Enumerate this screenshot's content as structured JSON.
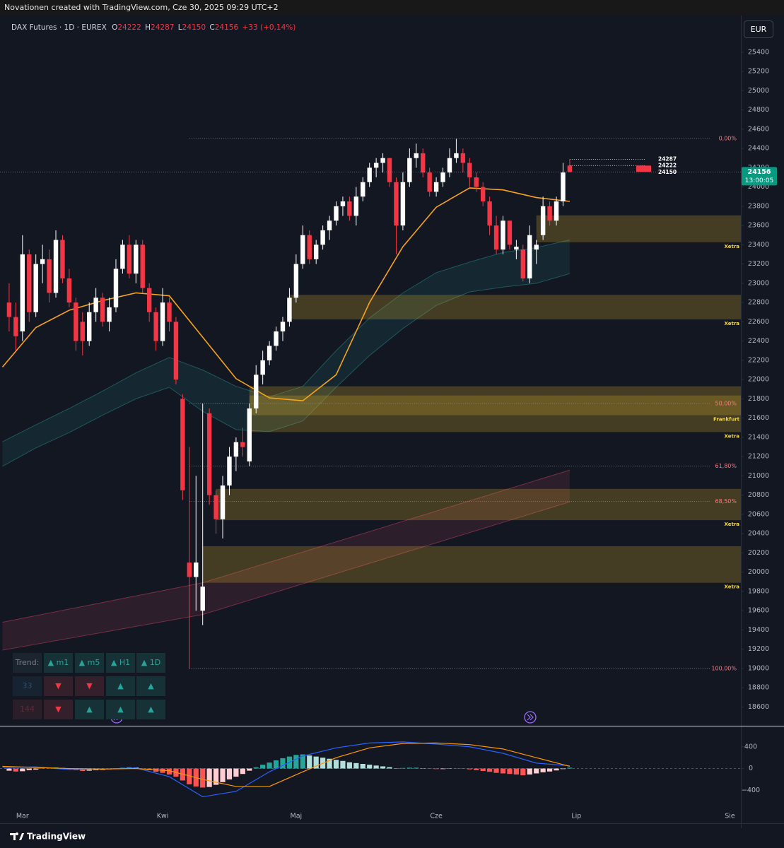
{
  "header": {
    "text": "Novationen created with TradingView.com, Cze 30, 2025 09:29 UTC+2"
  },
  "footer": {
    "logo_text": "TradingView"
  },
  "trend_table": {
    "header": {
      "cells": [
        "Trend:",
        "▲ m1",
        "▲ m5",
        "▲ H1",
        "▲ 1D"
      ],
      "colors": [
        "#787b86",
        "#26a69a",
        "#26a69a",
        "#26a69a",
        "#26a69a"
      ],
      "backgrounds": [
        "#1b2530",
        "#173236",
        "#173236",
        "#173236",
        "#173236"
      ]
    },
    "rows": [
      {
        "cells": [
          "33",
          "▼",
          "▼",
          "▲",
          "▲"
        ],
        "colors": [
          "#2d4f73",
          "#f23645",
          "#f23645",
          "#26a69a",
          "#26a69a"
        ],
        "backgrounds": [
          "#172330",
          "#34202a",
          "#34202a",
          "#173236",
          "#173236"
        ]
      },
      {
        "cells": [
          "144",
          "▼",
          "▲",
          "▲",
          "▲"
        ],
        "colors": [
          "#5c2b36",
          "#f23645",
          "#26a69a",
          "#26a69a",
          "#26a69a"
        ],
        "backgrounds": [
          "#2a1f28",
          "#34202a",
          "#173236",
          "#173236",
          "#173236"
        ]
      }
    ]
  },
  "chart_data": [
    {
      "type": "candlestick",
      "title": "DAX Futures · 1D · EUREX",
      "ohlc_labels": [
        "O",
        "H",
        "L",
        "C"
      ],
      "change": "+33 (+0,14%)",
      "currency": "EUR",
      "countdown": "13:00:05",
      "categories": [
        null,
        null,
        null,
        "Mar",
        null,
        null,
        null,
        null,
        null,
        null,
        null,
        null,
        null,
        null,
        null,
        null,
        null,
        null,
        null,
        null,
        null,
        null,
        null,
        null,
        "Kwi",
        null,
        null,
        null,
        null,
        null,
        null,
        null,
        null,
        null,
        null,
        null,
        null,
        null,
        null,
        null,
        null,
        null,
        null,
        null,
        "Maj",
        null,
        null,
        null,
        null,
        null,
        null,
        null,
        null,
        null,
        null,
        null,
        null,
        null,
        null,
        null,
        null,
        null,
        null,
        null,
        null,
        "Cze",
        null,
        null,
        null,
        null,
        null,
        null,
        null,
        null,
        null,
        null,
        null,
        null,
        null,
        null,
        null,
        null,
        null,
        null,
        null,
        null,
        "Lip",
        null,
        null,
        null,
        null,
        null,
        null,
        null,
        null,
        null,
        null,
        null,
        null,
        null,
        null,
        null,
        null,
        null,
        null,
        null,
        null,
        null,
        null,
        "Sie"
      ],
      "open": [
        null,
        22800,
        22650,
        22500,
        23300,
        22700,
        23200,
        23250,
        22900,
        23450,
        23050,
        22800,
        22600,
        22400,
        22700,
        22850,
        22600,
        22750,
        23150,
        23400,
        23100,
        23400,
        22950,
        22700,
        22400,
        22800,
        22600,
        21800,
        20100,
        19950,
        19600,
        21650,
        20800,
        20550,
        20900,
        21200,
        21350,
        21150,
        21700,
        22050,
        22200,
        22350,
        22500,
        22600,
        22850,
        23200,
        23500,
        23250,
        23400,
        23550,
        23650,
        23800,
        23850,
        23700,
        23900,
        24050,
        24200,
        24250,
        24300,
        24050,
        23600,
        24050,
        24300,
        24350,
        24150,
        23950,
        24050,
        24150,
        24300,
        24350,
        24250,
        24100,
        24000,
        23850,
        23600,
        23350,
        23650,
        23350,
        23350,
        23050,
        23350,
        23500,
        23800,
        23650,
        23850,
        24222,
        null,
        null,
        null,
        null,
        null,
        null,
        null,
        null,
        null,
        null,
        null,
        null,
        null,
        null,
        null,
        null,
        null,
        null,
        null,
        null,
        null,
        null,
        null,
        null
      ],
      "high": [
        null,
        23000,
        22800,
        23500,
        23350,
        23300,
        23400,
        23350,
        23550,
        23500,
        23150,
        22850,
        22700,
        22800,
        22950,
        22900,
        22850,
        23250,
        23450,
        23500,
        23450,
        23450,
        23000,
        22750,
        22950,
        22850,
        22650,
        21850,
        21300,
        21000,
        21750,
        21700,
        20850,
        21000,
        21300,
        21400,
        21500,
        21750,
        22150,
        22300,
        22400,
        22550,
        22650,
        22950,
        23300,
        23600,
        23550,
        23450,
        23600,
        23700,
        23850,
        23900,
        23900,
        24000,
        24100,
        24250,
        24300,
        24350,
        24300,
        24100,
        24150,
        24400,
        24450,
        24400,
        24200,
        24100,
        24200,
        24400,
        24500,
        24400,
        24300,
        24150,
        24050,
        23900,
        23700,
        23700,
        23650,
        23450,
        23400,
        23600,
        23450,
        23900,
        23850,
        23900,
        24250,
        24287,
        null,
        null,
        null,
        null,
        null,
        null,
        null,
        null,
        null,
        null,
        null,
        null,
        null,
        null,
        null,
        null,
        null,
        null,
        null,
        null,
        null,
        null,
        null,
        null
      ],
      "low": [
        null,
        22500,
        22300,
        22400,
        22600,
        22650,
        23000,
        22800,
        22850,
        23000,
        22750,
        22300,
        22250,
        22350,
        22600,
        22550,
        22500,
        22700,
        23100,
        23050,
        23000,
        22900,
        22600,
        22300,
        22350,
        22500,
        21950,
        20750,
        19000,
        19600,
        19450,
        20700,
        20400,
        20350,
        20800,
        21050,
        21200,
        21100,
        21650,
        21950,
        22150,
        22300,
        22400,
        22550,
        22800,
        23150,
        23200,
        23200,
        23350,
        23450,
        23600,
        23700,
        23650,
        23600,
        23850,
        24000,
        24100,
        24150,
        24000,
        23300,
        23550,
        24000,
        24200,
        24100,
        23900,
        23900,
        24000,
        24100,
        24250,
        24150,
        24000,
        23950,
        23800,
        23500,
        23300,
        23300,
        23350,
        23250,
        23020,
        23000,
        23200,
        23450,
        23600,
        23600,
        23800,
        24150,
        null,
        null,
        null,
        null,
        null,
        null,
        null,
        null,
        null,
        null,
        null,
        null,
        null,
        null,
        null,
        null,
        null,
        null,
        null,
        null,
        null,
        null,
        null,
        null
      ],
      "close": [
        null,
        22650,
        22450,
        23300,
        22700,
        23200,
        23250,
        22900,
        23450,
        23050,
        22800,
        22400,
        22400,
        22700,
        22850,
        22600,
        22750,
        23150,
        23400,
        23100,
        23400,
        22950,
        22700,
        22400,
        22800,
        22600,
        22000,
        20850,
        19950,
        20100,
        19850,
        20800,
        20550,
        20900,
        21200,
        21350,
        21300,
        21700,
        22050,
        22200,
        22350,
        22500,
        22600,
        22850,
        23200,
        23500,
        23250,
        23400,
        23550,
        23650,
        23800,
        23850,
        23700,
        23900,
        24050,
        24200,
        24250,
        24300,
        24050,
        23600,
        24050,
        24300,
        24350,
        24150,
        23950,
        24050,
        24150,
        24300,
        24350,
        24250,
        24100,
        24000,
        23850,
        23600,
        23350,
        23650,
        23400,
        23380,
        23050,
        23500,
        23400,
        23800,
        23650,
        23850,
        24150,
        24156,
        null,
        null,
        null,
        null,
        null,
        null,
        null,
        null,
        null,
        null,
        null,
        null,
        null,
        null,
        null,
        null,
        null,
        null,
        null,
        null,
        null,
        null,
        null,
        null
      ],
      "up_color": "#ffffff",
      "down_color": "#f23645",
      "last_tag_color": "#089981",
      "ylim": [
        18420,
        25780
      ],
      "yticks": [
        18600,
        18800,
        19000,
        19200,
        19400,
        19600,
        19800,
        20000,
        20200,
        20400,
        20600,
        20800,
        21000,
        21200,
        21400,
        21600,
        21800,
        22000,
        22200,
        22400,
        22600,
        22800,
        23000,
        23200,
        23400,
        23600,
        23800,
        24000,
        24200,
        24400,
        24600,
        24800,
        25000,
        25200,
        25400
      ],
      "ma": {
        "color": "#f7a21b",
        "x": [
          0,
          5,
          10,
          15,
          20,
          25,
          30,
          35,
          40,
          45,
          50,
          55,
          60,
          65,
          70,
          75,
          80,
          85
        ],
        "values": [
          22130,
          22540,
          22720,
          22820,
          22900,
          22870,
          22440,
          22010,
          21810,
          21780,
          22050,
          22800,
          23380,
          23790,
          23990,
          23970,
          23890,
          23850
        ]
      },
      "bands": [
        {
          "color": "#e04a6a",
          "x": [
            0,
            30,
            85
          ],
          "upper": [
            19480,
            19890,
            21060
          ],
          "lower": [
            19190,
            19560,
            20730
          ]
        },
        {
          "color": "#2a9d9a",
          "x": [
            0,
            5,
            10,
            15,
            20,
            25,
            30,
            35,
            40,
            45,
            50,
            55,
            60,
            65,
            70,
            75,
            80,
            85
          ],
          "upper": [
            21355,
            21530,
            21700,
            21880,
            22070,
            22230,
            22100,
            21930,
            21820,
            21930,
            22300,
            22640,
            22900,
            23110,
            23220,
            23320,
            23370,
            23450
          ],
          "lower": [
            21100,
            21290,
            21450,
            21630,
            21800,
            21920,
            21670,
            21480,
            21460,
            21570,
            21920,
            22250,
            22530,
            22770,
            22910,
            22960,
            23000,
            23100
          ]
        }
      ],
      "zones": [
        {
          "x": 80,
          "top": 23705,
          "bottom": 23426,
          "label": "Xetra",
          "color": "#c9a227"
        },
        {
          "x": 43,
          "top": 22880,
          "bottom": 22625,
          "label": "Xetra",
          "color": "#c9a227"
        },
        {
          "x": 37,
          "top": 21930,
          "bottom": 21630,
          "label": "Frankfurt",
          "color": "#c9a227"
        },
        {
          "x": 37,
          "top": 21835,
          "bottom": 21455,
          "label": "Xetra",
          "color": "#c9a227"
        },
        {
          "x": 32,
          "top": 20865,
          "bottom": 20540,
          "label": "Xetra",
          "color": "#c9a227"
        },
        {
          "x": 30,
          "top": 20270,
          "bottom": 19890,
          "label": "Xetra",
          "color": "#c9a227"
        }
      ],
      "zone_label_color": "#f5d742",
      "fib": {
        "x": 28,
        "line_color": "#8a8d96",
        "label_color": "#f77c80",
        "levels": [
          {
            "price": 24505,
            "label": "0,00%"
          },
          {
            "price": 21752,
            "label": "50,00%"
          },
          {
            "price": 21103,
            "label": "61,80%"
          },
          {
            "price": 20734,
            "label": "68,50%"
          },
          {
            "price": 19000,
            "label": "100,00%"
          }
        ]
      }
    },
    {
      "type": "bar",
      "values": [
        null,
        -40,
        -55,
        -50,
        -30,
        -20,
        10,
        15,
        20,
        10,
        -10,
        -30,
        -45,
        -40,
        -30,
        -25,
        -15,
        5,
        15,
        25,
        20,
        -5,
        -30,
        -60,
        -80,
        -110,
        -150,
        -220,
        -290,
        -330,
        -350,
        -340,
        -300,
        -250,
        -200,
        -150,
        -100,
        -40,
        20,
        70,
        110,
        150,
        190,
        220,
        250,
        260,
        240,
        220,
        200,
        180,
        160,
        140,
        115,
        100,
        85,
        70,
        55,
        40,
        25,
        5,
        10,
        15,
        15,
        5,
        -5,
        -10,
        -10,
        -5,
        5,
        -5,
        -15,
        -30,
        -45,
        -60,
        -80,
        -90,
        -100,
        -110,
        -125,
        -110,
        -90,
        -70,
        -55,
        -35,
        -10,
        15,
        null,
        null,
        null,
        null,
        null,
        null,
        null,
        null,
        null,
        null,
        null,
        null,
        null,
        null,
        null,
        null,
        null,
        null,
        null,
        null,
        null,
        null,
        null,
        null
      ],
      "colors": [
        "#26a69a",
        "#b2dfdb",
        "#ffcdd2",
        "#ff5252"
      ],
      "lines": [
        {
          "color": "#2962ff",
          "x": [
            0,
            5,
            10,
            15,
            20,
            25,
            30,
            35,
            40,
            45,
            50,
            55,
            60,
            65,
            70,
            75,
            80,
            85
          ],
          "values": [
            20,
            30,
            -20,
            -10,
            10,
            -150,
            -520,
            -420,
            -60,
            230,
            380,
            470,
            490,
            450,
            400,
            280,
            100,
            50
          ]
        },
        {
          "color": "#ff9800",
          "x": [
            0,
            5,
            10,
            15,
            20,
            25,
            30,
            35,
            40,
            45,
            50,
            55,
            60,
            65,
            70,
            75,
            80,
            85
          ],
          "values": [
            40,
            20,
            0,
            -10,
            0,
            -40,
            -200,
            -330,
            -330,
            -60,
            200,
            380,
            460,
            470,
            440,
            360,
            200,
            40
          ]
        }
      ],
      "ylim": [
        -968,
        735
      ],
      "yticks": [
        400,
        0,
        {
          "value": -400,
          "label": "−400"
        }
      ]
    }
  ]
}
